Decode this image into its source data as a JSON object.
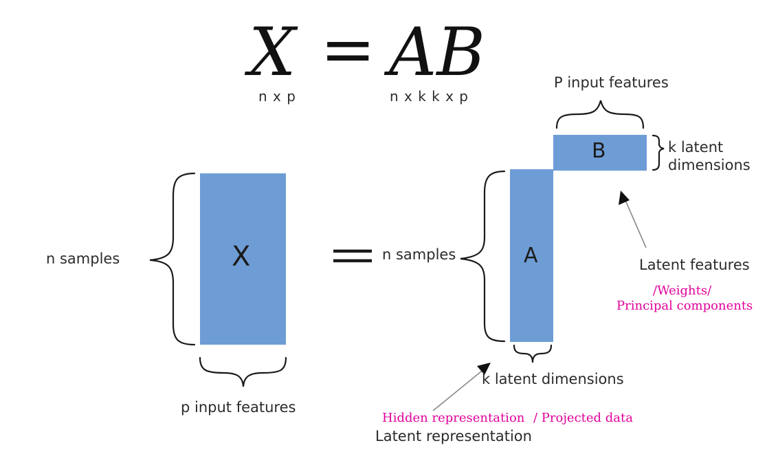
{
  "equation": {
    "lhs": "X",
    "equals": "=",
    "rhs": "AB",
    "lhs_dims": "n x p",
    "rhs_dims": "n x k  k x p"
  },
  "matrices": {
    "x": {
      "letter": "X",
      "color": "#6e9dd6"
    },
    "a": {
      "letter": "A",
      "color": "#6e9dd6"
    },
    "b": {
      "letter": "B",
      "color": "#6e9dd6"
    }
  },
  "labels": {
    "x_rows": "n samples",
    "x_cols": "p input features",
    "a_rows": "n samples",
    "a_cols": "k latent dimensions",
    "b_cols": "P input features",
    "b_rows_line1": "k latent",
    "b_rows_line2": "dimensions",
    "latent_features": "Latent features",
    "latent_representation": "Latent representation"
  },
  "annotations": {
    "weights": "/Weights/",
    "principal_components": "Principal components",
    "hidden_representation": "Hidden representation",
    "projected_data": "/ Projected data",
    "color": "#e0009a"
  },
  "equals_sign": "="
}
